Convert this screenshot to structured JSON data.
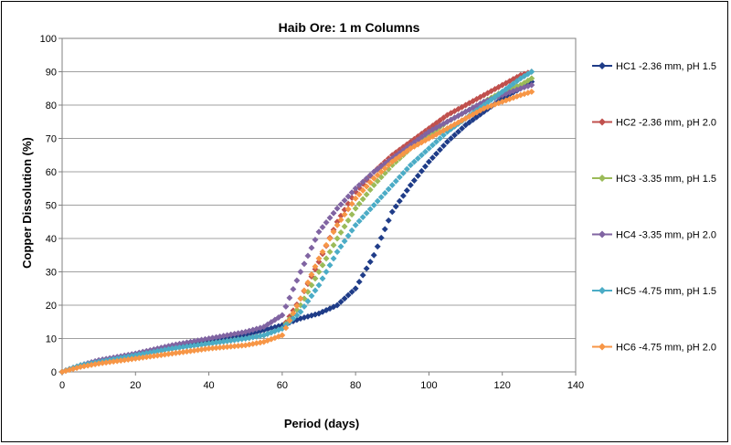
{
  "chart_data": {
    "type": "scatter",
    "title": "Haib Ore: 1 m Columns",
    "xlabel": "Period (days)",
    "ylabel": "Copper Dissolution (%)",
    "xlim": [
      0,
      140
    ],
    "ylim": [
      0,
      100
    ],
    "xticks": [
      0,
      20,
      40,
      60,
      80,
      100,
      120,
      140
    ],
    "yticks": [
      0,
      10,
      20,
      30,
      40,
      50,
      60,
      70,
      80,
      90,
      100
    ],
    "grid": "horizontal",
    "legend_position": "right",
    "series": [
      {
        "name": "HC1 -2.36 mm, pH 1.5",
        "color": "#1f3c88",
        "marker": "diamond",
        "points": [
          [
            0,
            0
          ],
          [
            5,
            2
          ],
          [
            10,
            3
          ],
          [
            20,
            5
          ],
          [
            30,
            7
          ],
          [
            40,
            9
          ],
          [
            50,
            11
          ],
          [
            55,
            12.5
          ],
          [
            60,
            14
          ],
          [
            65,
            16
          ],
          [
            70,
            17.5
          ],
          [
            75,
            20
          ],
          [
            80,
            25
          ],
          [
            85,
            35
          ],
          [
            90,
            48
          ],
          [
            95,
            56
          ],
          [
            100,
            63
          ],
          [
            105,
            69
          ],
          [
            110,
            74
          ],
          [
            115,
            78
          ],
          [
            120,
            82
          ],
          [
            125,
            85
          ],
          [
            128,
            87
          ]
        ]
      },
      {
        "name": "HC2 -2.36 mm, pH 2.0",
        "color": "#c0504d",
        "marker": "diamond",
        "points": [
          [
            0,
            0
          ],
          [
            5,
            2
          ],
          [
            10,
            3
          ],
          [
            20,
            5
          ],
          [
            30,
            7
          ],
          [
            40,
            8.5
          ],
          [
            50,
            10
          ],
          [
            55,
            11
          ],
          [
            60,
            13
          ],
          [
            65,
            22
          ],
          [
            70,
            33
          ],
          [
            75,
            45
          ],
          [
            80,
            54
          ],
          [
            85,
            60
          ],
          [
            90,
            65
          ],
          [
            95,
            69
          ],
          [
            100,
            73
          ],
          [
            105,
            77
          ],
          [
            110,
            80
          ],
          [
            115,
            83
          ],
          [
            120,
            86
          ],
          [
            125,
            89
          ],
          [
            128,
            90
          ]
        ]
      },
      {
        "name": "HC3 -3.35 mm, pH 1.5",
        "color": "#9bbb59",
        "marker": "diamond",
        "points": [
          [
            0,
            0
          ],
          [
            5,
            2
          ],
          [
            10,
            3
          ],
          [
            20,
            5
          ],
          [
            30,
            7
          ],
          [
            40,
            8.5
          ],
          [
            50,
            10
          ],
          [
            55,
            11
          ],
          [
            60,
            13
          ],
          [
            65,
            20
          ],
          [
            70,
            30
          ],
          [
            75,
            40
          ],
          [
            80,
            49
          ],
          [
            85,
            56
          ],
          [
            90,
            62
          ],
          [
            95,
            67
          ],
          [
            100,
            71
          ],
          [
            105,
            75
          ],
          [
            110,
            78
          ],
          [
            115,
            81
          ],
          [
            120,
            84
          ],
          [
            125,
            86
          ],
          [
            128,
            88
          ]
        ]
      },
      {
        "name": "HC4 -3.35 mm, pH 2.0",
        "color": "#8064a2",
        "marker": "diamond",
        "points": [
          [
            0,
            0
          ],
          [
            5,
            2
          ],
          [
            10,
            3.5
          ],
          [
            20,
            5.5
          ],
          [
            30,
            8
          ],
          [
            40,
            10
          ],
          [
            50,
            12
          ],
          [
            55,
            13.5
          ],
          [
            60,
            17
          ],
          [
            65,
            30
          ],
          [
            70,
            42
          ],
          [
            75,
            49
          ],
          [
            80,
            55
          ],
          [
            85,
            60
          ],
          [
            90,
            64
          ],
          [
            95,
            68
          ],
          [
            100,
            72
          ],
          [
            105,
            75
          ],
          [
            110,
            78
          ],
          [
            115,
            81
          ],
          [
            120,
            83
          ],
          [
            125,
            85
          ],
          [
            128,
            86
          ]
        ]
      },
      {
        "name": "HC5 -4.75 mm, pH 1.5",
        "color": "#4bacc6",
        "marker": "diamond",
        "points": [
          [
            0,
            0
          ],
          [
            5,
            2
          ],
          [
            10,
            3
          ],
          [
            20,
            5
          ],
          [
            30,
            7
          ],
          [
            40,
            8.5
          ],
          [
            50,
            10
          ],
          [
            55,
            11
          ],
          [
            60,
            13
          ],
          [
            65,
            18
          ],
          [
            70,
            26
          ],
          [
            75,
            36
          ],
          [
            80,
            44
          ],
          [
            85,
            50
          ],
          [
            90,
            56
          ],
          [
            95,
            62
          ],
          [
            100,
            67
          ],
          [
            105,
            72
          ],
          [
            110,
            76
          ],
          [
            115,
            80
          ],
          [
            120,
            84
          ],
          [
            125,
            88
          ],
          [
            128,
            90
          ]
        ]
      },
      {
        "name": "HC6 -4.75 mm, pH 2.0",
        "color": "#f79646",
        "marker": "diamond",
        "points": [
          [
            0,
            0
          ],
          [
            5,
            1.5
          ],
          [
            10,
            2.5
          ],
          [
            20,
            4
          ],
          [
            30,
            5.5
          ],
          [
            40,
            7
          ],
          [
            50,
            8
          ],
          [
            55,
            9
          ],
          [
            60,
            11
          ],
          [
            65,
            22
          ],
          [
            70,
            34
          ],
          [
            75,
            44
          ],
          [
            80,
            52
          ],
          [
            85,
            58
          ],
          [
            90,
            63
          ],
          [
            95,
            67
          ],
          [
            100,
            70
          ],
          [
            105,
            73
          ],
          [
            110,
            76
          ],
          [
            115,
            79
          ],
          [
            120,
            81
          ],
          [
            125,
            83
          ],
          [
            128,
            84
          ]
        ]
      }
    ]
  }
}
